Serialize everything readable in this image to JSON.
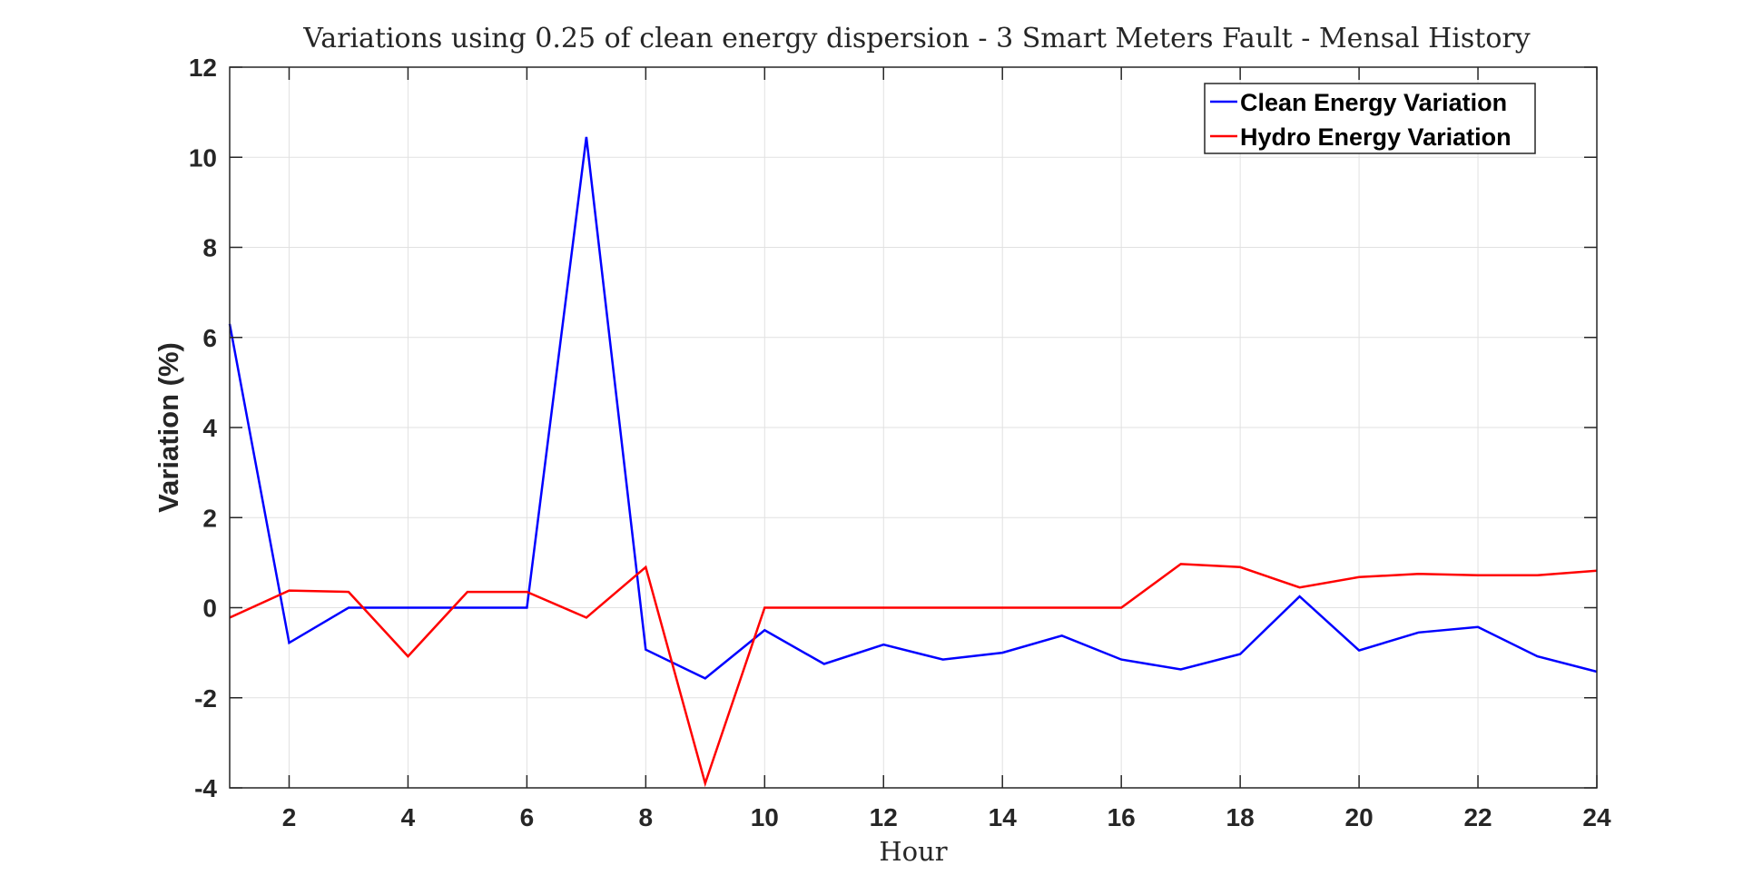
{
  "chart_data": {
    "type": "line",
    "title": "Variations using 0.25 of clean energy dispersion - 3 Smart Meters Fault - Mensal History",
    "xlabel": "Hour",
    "ylabel": "Variation (%)",
    "xlim": [
      1,
      24
    ],
    "ylim": [
      -4,
      12
    ],
    "xticks": [
      2,
      4,
      6,
      8,
      10,
      12,
      14,
      16,
      18,
      20,
      22,
      24
    ],
    "yticks": [
      -4,
      -2,
      0,
      2,
      4,
      6,
      8,
      10,
      12
    ],
    "grid": true,
    "legend_position": "top-right",
    "x": [
      1,
      2,
      3,
      4,
      5,
      6,
      7,
      8,
      9,
      10,
      11,
      12,
      13,
      14,
      15,
      16,
      17,
      18,
      19,
      20,
      21,
      22,
      23,
      24
    ],
    "series": [
      {
        "name": "Clean Energy Variation",
        "color": "#0000ff",
        "values": [
          6.3,
          -0.78,
          0.0,
          0.0,
          0.0,
          0.0,
          10.45,
          -0.93,
          -1.57,
          -0.5,
          -1.25,
          -0.82,
          -1.15,
          -1.0,
          -0.62,
          -1.15,
          -1.37,
          -1.03,
          0.25,
          -0.95,
          -0.55,
          -0.43,
          -1.08,
          -1.42
        ]
      },
      {
        "name": "Hydro Energy Variation",
        "color": "#ff0000",
        "values": [
          -0.22,
          0.38,
          0.35,
          -1.08,
          0.35,
          0.35,
          -0.22,
          0.9,
          -3.9,
          0.0,
          0.0,
          0.0,
          0.0,
          0.0,
          0.0,
          0.0,
          0.97,
          0.9,
          0.45,
          0.68,
          0.75,
          0.72,
          0.72,
          0.82
        ]
      }
    ]
  }
}
